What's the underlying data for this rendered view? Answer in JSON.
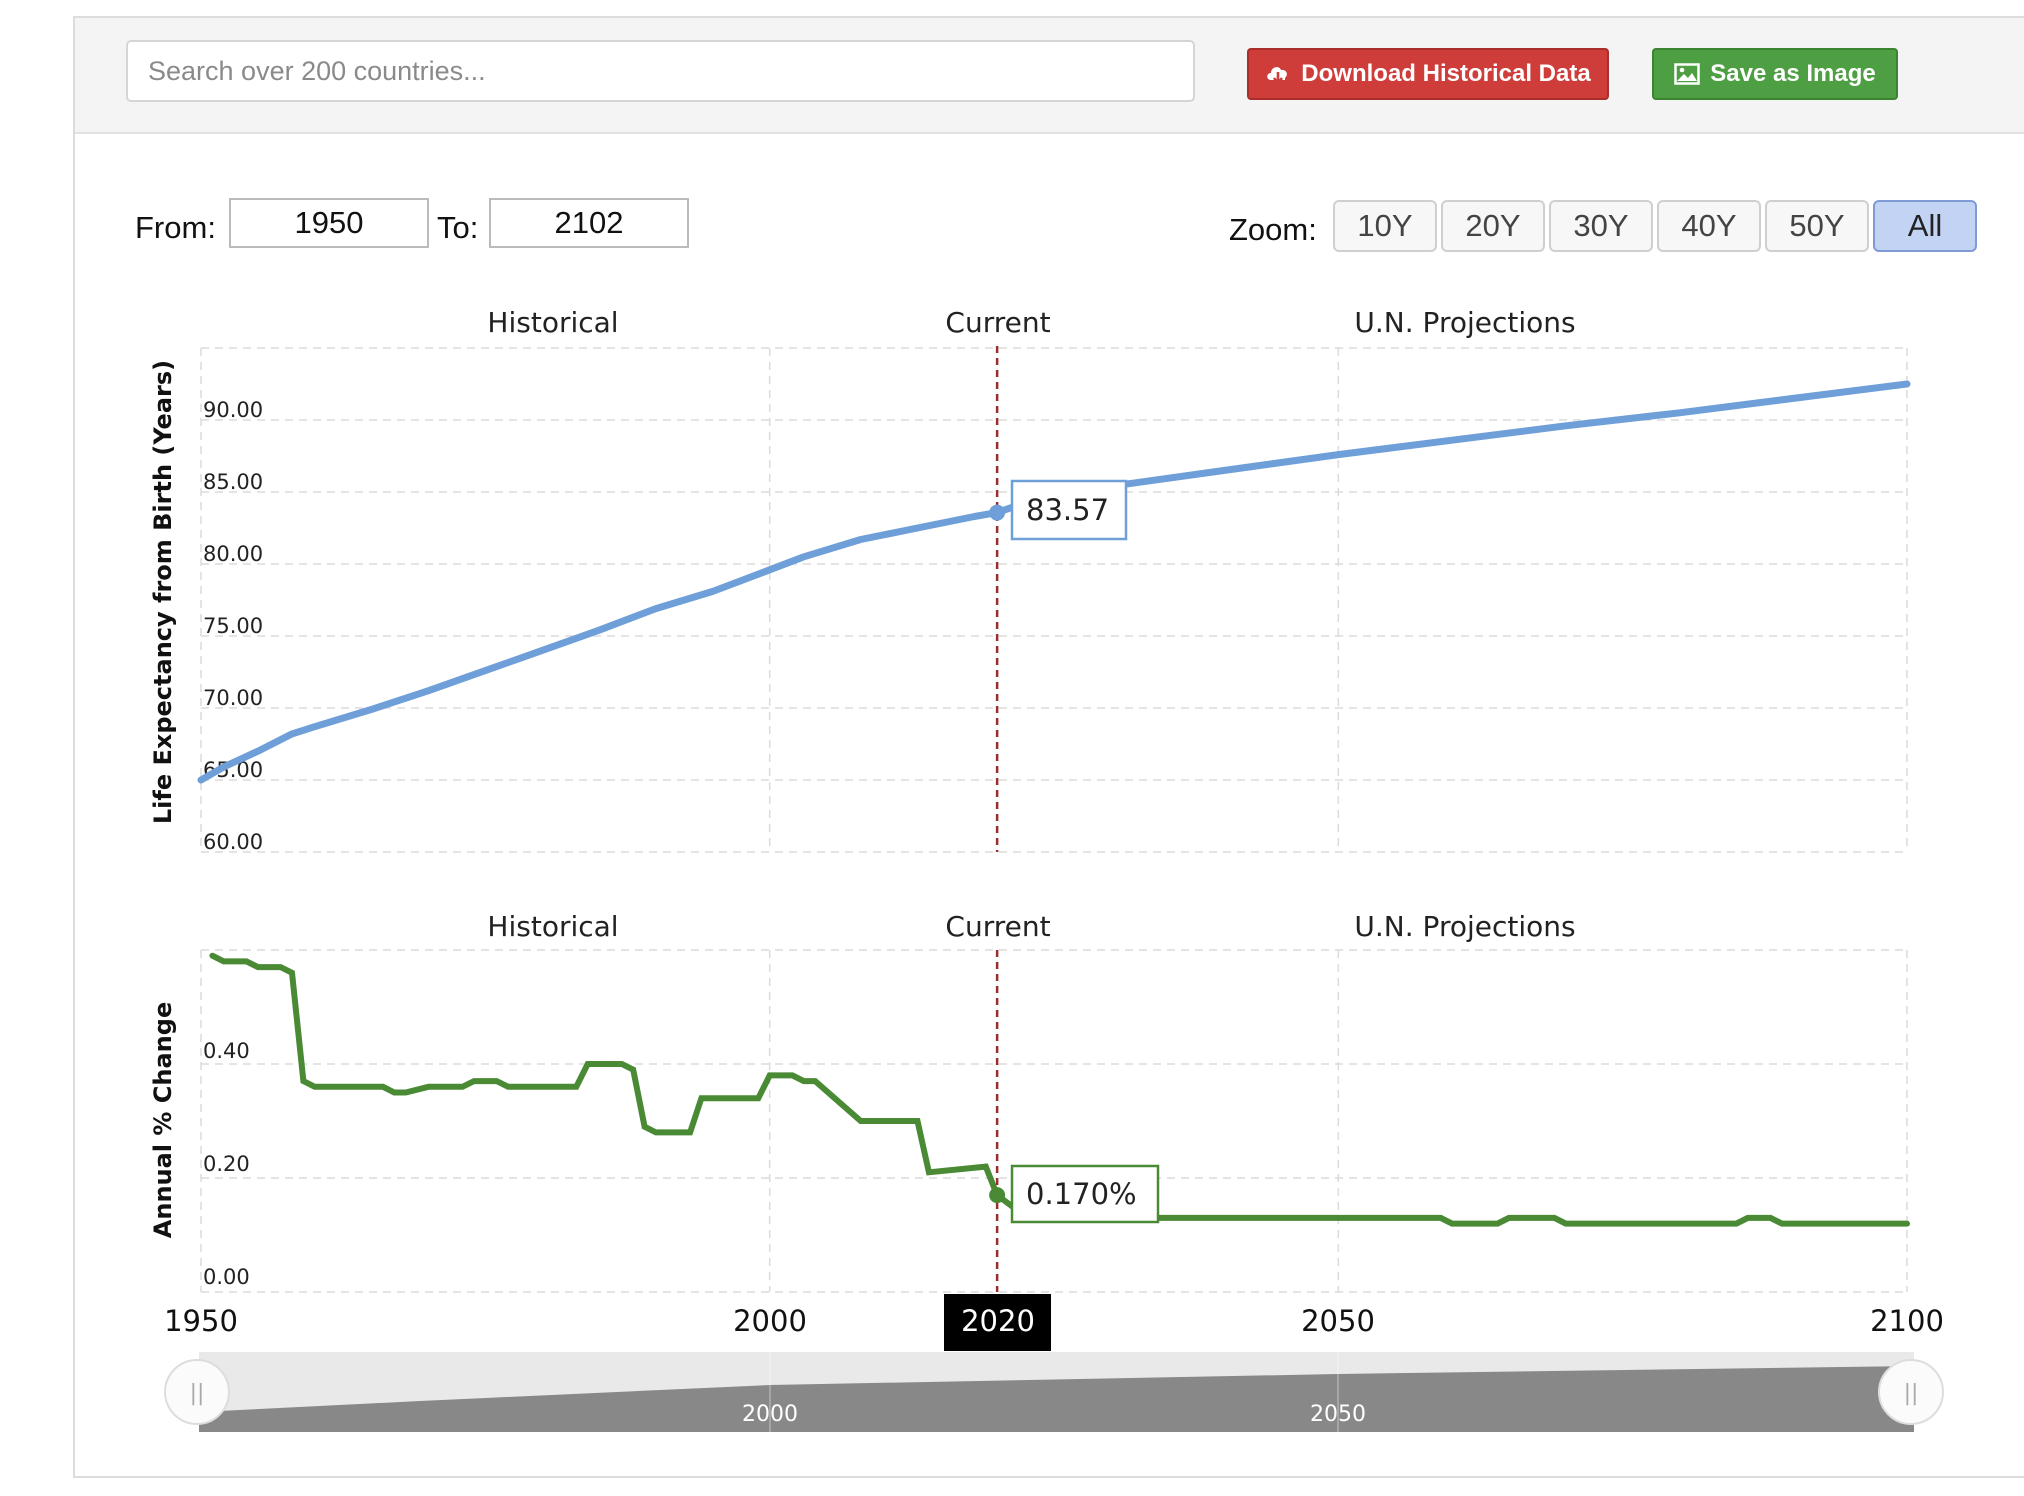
{
  "toolbar": {
    "search_placeholder": "Search over 200 countries...",
    "download_label": "Download Historical Data",
    "save_label": "Save as Image",
    "download_color": "#cf3d3a",
    "save_color": "#4e9f43"
  },
  "range": {
    "from_label": "From:",
    "from_value": "1950",
    "to_label": "To:",
    "to_value": "2102",
    "zoom_label": "Zoom:",
    "zoom_options": [
      "10Y",
      "20Y",
      "30Y",
      "40Y",
      "50Y",
      "All"
    ],
    "zoom_selected": "All"
  },
  "navigator": {
    "labels": [
      "2000",
      "2050"
    ],
    "handle_left": "||",
    "handle_right": "||"
  },
  "chart_data": [
    {
      "type": "line",
      "ylabel": "Life Expectancy from Birth (Years)",
      "xlim": [
        1950,
        2100
      ],
      "ylim": [
        60,
        95
      ],
      "yticks": [
        "60.00",
        "65.00",
        "70.00",
        "75.00",
        "80.00",
        "85.00",
        "90.00"
      ],
      "grid": true,
      "bands": [
        "Historical",
        "Current",
        "U.N. Projections"
      ],
      "current_year": 2020,
      "color": "#6f9fd8",
      "x": [
        1950,
        1952,
        1955,
        1958,
        1960,
        1965,
        1970,
        1975,
        1980,
        1985,
        1990,
        1995,
        2000,
        2003,
        2008,
        2013,
        2018,
        2020,
        2023,
        2030,
        2040,
        2050,
        2060,
        2070,
        2080,
        2090,
        2100
      ],
      "y": [
        65.0,
        65.9,
        67.0,
        68.2,
        68.7,
        69.9,
        71.2,
        72.6,
        74.0,
        75.4,
        76.9,
        78.1,
        79.6,
        80.5,
        81.7,
        82.5,
        83.3,
        83.57,
        84.4,
        85.4,
        86.5,
        87.6,
        88.6,
        89.6,
        90.5,
        91.5,
        92.5
      ],
      "tooltip": "83.57"
    },
    {
      "type": "line",
      "ylabel": "Annual % Change",
      "xlim": [
        1950,
        2100
      ],
      "ylim": [
        0,
        0.6
      ],
      "yticks": [
        "0.00",
        "0.20",
        "0.40"
      ],
      "grid": true,
      "bands": [
        "Historical",
        "Current",
        "U.N. Projections"
      ],
      "current_year": 2020,
      "color": "#4a8a34",
      "x": [
        1951,
        1952,
        1954,
        1955,
        1957,
        1958,
        1959,
        1960,
        1966,
        1967,
        1968,
        1970,
        1973,
        1974,
        1976,
        1977,
        1983,
        1984,
        1987,
        1988,
        1989,
        1990,
        1993,
        1994,
        1999,
        2000,
        2002,
        2003,
        2004,
        2008,
        2009,
        2013,
        2014,
        2019,
        2020,
        2022,
        2030,
        2031,
        2050,
        2059,
        2060,
        2064,
        2065,
        2069,
        2070,
        2085,
        2086,
        2088,
        2089,
        2100
      ],
      "y": [
        0.59,
        0.58,
        0.58,
        0.57,
        0.57,
        0.56,
        0.37,
        0.36,
        0.36,
        0.35,
        0.35,
        0.36,
        0.36,
        0.37,
        0.37,
        0.36,
        0.36,
        0.4,
        0.4,
        0.39,
        0.29,
        0.28,
        0.28,
        0.34,
        0.34,
        0.38,
        0.38,
        0.37,
        0.37,
        0.3,
        0.3,
        0.3,
        0.21,
        0.22,
        0.17,
        0.14,
        0.14,
        0.13,
        0.13,
        0.13,
        0.12,
        0.12,
        0.13,
        0.13,
        0.12,
        0.12,
        0.13,
        0.13,
        0.12,
        0.12
      ],
      "tooltip": "0.170%"
    }
  ],
  "x_axis": {
    "ticks": [
      "1950",
      "2000",
      "2050",
      "2100"
    ],
    "highlight": "2020"
  }
}
